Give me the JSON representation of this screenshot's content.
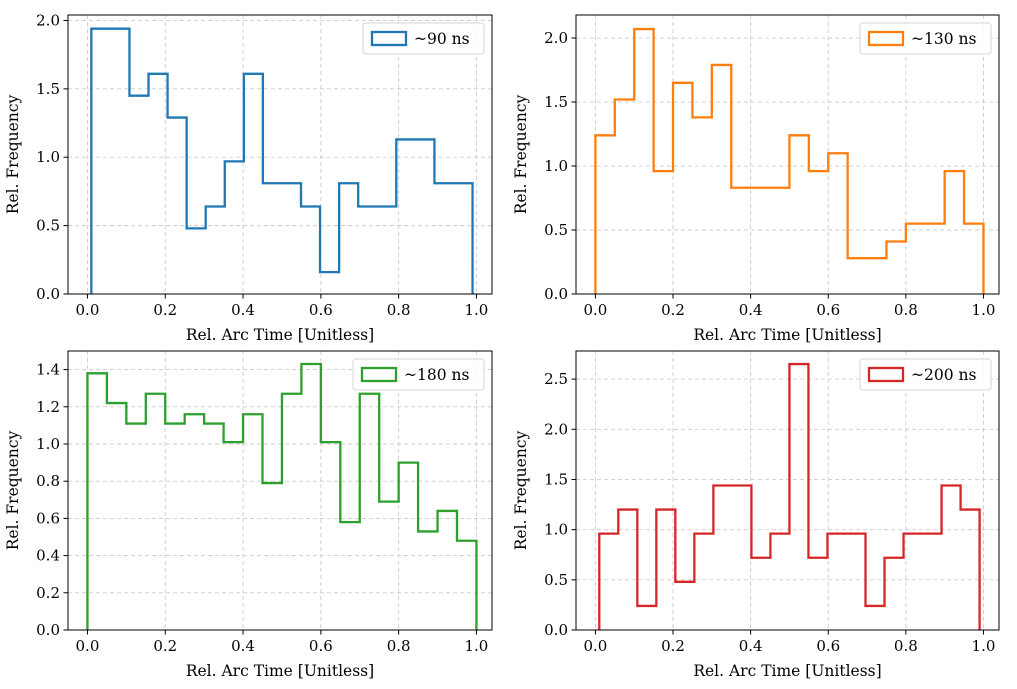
{
  "figure": {
    "background": "#ffffff"
  },
  "chart_data": [
    {
      "type": "histogram",
      "legend": "~90 ns",
      "legend_position": "top-right",
      "color": "#1f77b4",
      "xlabel": "Rel. Arc Time [Unitless]",
      "ylabel": "Rel. Frequency",
      "xlim": [
        -0.05,
        1.04
      ],
      "ylim": [
        0,
        2.04
      ],
      "xticks": [
        0,
        0.2,
        0.4,
        0.6,
        0.8,
        1.0
      ],
      "xtick_labels": [
        "0.0",
        "0.2",
        "0.4",
        "0.6",
        "0.8",
        "1.0"
      ],
      "yticks": [
        0,
        0.5,
        1.0,
        1.5,
        2.0
      ],
      "ytick_labels": [
        "0.0",
        "0.5",
        "1.0",
        "1.5",
        "2.0"
      ],
      "grid": true,
      "bin_edges": [
        0.01,
        0.108,
        0.157,
        0.206,
        0.255,
        0.304,
        0.353,
        0.402,
        0.451,
        0.549,
        0.598,
        0.647,
        0.696,
        0.794,
        0.892,
        0.99
      ],
      "values": [
        1.94,
        1.45,
        1.61,
        1.29,
        0.48,
        0.64,
        0.97,
        1.61,
        0.81,
        0.64,
        0.16,
        0.81,
        0.64,
        1.13,
        0.81
      ]
    },
    {
      "type": "histogram",
      "legend": "~130 ns",
      "legend_position": "top-right",
      "color": "#ff7f0e",
      "xlabel": "Rel. Arc Time [Unitless]",
      "ylabel": "Rel. Frequency",
      "xlim": [
        -0.05,
        1.04
      ],
      "ylim": [
        0,
        2.18
      ],
      "xticks": [
        0,
        0.2,
        0.4,
        0.6,
        0.8,
        1.0
      ],
      "xtick_labels": [
        "0.0",
        "0.2",
        "0.4",
        "0.6",
        "0.8",
        "1.0"
      ],
      "yticks": [
        0,
        0.5,
        1.0,
        1.5,
        2.0
      ],
      "ytick_labels": [
        "0.0",
        "0.5",
        "1.0",
        "1.5",
        "2.0"
      ],
      "grid": true,
      "bin_edges": [
        0.0,
        0.05,
        0.1,
        0.15,
        0.2,
        0.25,
        0.3,
        0.35,
        0.5,
        0.55,
        0.6,
        0.65,
        0.75,
        0.8,
        0.9,
        0.95,
        1.0
      ],
      "values": [
        1.24,
        1.52,
        2.07,
        0.96,
        1.65,
        1.38,
        1.79,
        0.83,
        1.24,
        0.96,
        1.1,
        0.28,
        0.41,
        0.55,
        0.96,
        0.55
      ]
    },
    {
      "type": "histogram",
      "legend": "~180 ns",
      "legend_position": "top-right",
      "color": "#2ca02c",
      "xlabel": "Rel. Arc Time [Unitless]",
      "ylabel": "Rel. Frequency",
      "xlim": [
        -0.05,
        1.04
      ],
      "ylim": [
        0,
        1.5
      ],
      "xticks": [
        0,
        0.2,
        0.4,
        0.6,
        0.8,
        1.0
      ],
      "xtick_labels": [
        "0.0",
        "0.2",
        "0.4",
        "0.6",
        "0.8",
        "1.0"
      ],
      "yticks": [
        0,
        0.2,
        0.4,
        0.6,
        0.8,
        1.0,
        1.2,
        1.4
      ],
      "ytick_labels": [
        "0.0",
        "0.2",
        "0.4",
        "0.6",
        "0.8",
        "1.0",
        "1.2",
        "1.4"
      ],
      "grid": true,
      "bin_edges": [
        0.0,
        0.05,
        0.1,
        0.15,
        0.2,
        0.25,
        0.3,
        0.35,
        0.4,
        0.45,
        0.5,
        0.55,
        0.6,
        0.65,
        0.7,
        0.75,
        0.8,
        0.85,
        0.9,
        0.95,
        1.0
      ],
      "values": [
        1.38,
        1.22,
        1.11,
        1.27,
        1.11,
        1.16,
        1.11,
        1.01,
        1.16,
        0.79,
        1.27,
        1.43,
        1.01,
        0.58,
        1.27,
        0.69,
        0.9,
        0.53,
        0.64,
        0.48
      ]
    },
    {
      "type": "histogram",
      "legend": "~200 ns",
      "legend_position": "top-right",
      "color": "#d62728",
      "xlabel": "Rel. Arc Time [Unitless]",
      "ylabel": "Rel. Frequency",
      "xlim": [
        -0.05,
        1.04
      ],
      "ylim": [
        0,
        2.78
      ],
      "xticks": [
        0,
        0.2,
        0.4,
        0.6,
        0.8,
        1.0
      ],
      "xtick_labels": [
        "0.0",
        "0.2",
        "0.4",
        "0.6",
        "0.8",
        "1.0"
      ],
      "yticks": [
        0,
        0.5,
        1.0,
        1.5,
        2.0,
        2.5
      ],
      "ytick_labels": [
        "0.0",
        "0.5",
        "1.0",
        "1.5",
        "2.0",
        "2.5"
      ],
      "grid": true,
      "bin_edges": [
        0.01,
        0.059,
        0.108,
        0.157,
        0.206,
        0.255,
        0.304,
        0.402,
        0.451,
        0.5,
        0.549,
        0.598,
        0.696,
        0.745,
        0.794,
        0.892,
        0.941,
        0.99
      ],
      "values": [
        0.96,
        1.2,
        0.24,
        1.2,
        0.48,
        0.96,
        1.44,
        0.72,
        0.96,
        2.65,
        0.72,
        0.96,
        0.24,
        0.72,
        0.96,
        1.44,
        1.2
      ]
    }
  ]
}
